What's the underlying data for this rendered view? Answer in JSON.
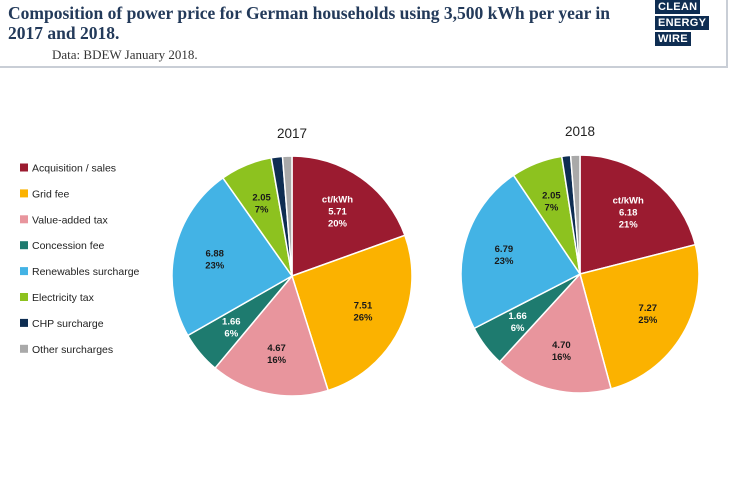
{
  "header": {
    "title": "Composition of power price for German households using 3,500 kWh per year in 2017 and 2018.",
    "subtitle": "Data: BDEW January 2018."
  },
  "logo": {
    "lines": [
      "CLEAN",
      "ENERGY",
      "WIRE"
    ]
  },
  "chart_data": {
    "type": "pie",
    "unit_label": "ct/kWh",
    "legend": [
      {
        "name": "Acquisition / sales",
        "color": "#9b1b30"
      },
      {
        "name": "Grid fee",
        "color": "#fbb200"
      },
      {
        "name": "Value-added tax",
        "color": "#e8959d"
      },
      {
        "name": "Concession fee",
        "color": "#1e7b6f"
      },
      {
        "name": "Renewables surcharge",
        "color": "#43b3e5"
      },
      {
        "name": "Electricity tax",
        "color": "#8dc21f"
      },
      {
        "name": "CHP surcharge",
        "color": "#0e2d52"
      },
      {
        "name": "Other surcharges",
        "color": "#a9a9a9"
      }
    ],
    "pies": [
      {
        "title": "2017",
        "values": [
          5.71,
          7.51,
          4.67,
          1.66,
          6.88,
          2.05,
          0.44,
          0.37
        ],
        "value_labels": [
          "5.71",
          "7.51",
          "4.67",
          "1.66",
          "6.88",
          "2.05",
          "",
          ""
        ],
        "percent_labels": [
          "20%",
          "26%",
          "16%",
          "6%",
          "23%",
          "7%",
          "",
          ""
        ]
      },
      {
        "title": "2018",
        "values": [
          6.18,
          7.27,
          4.7,
          1.66,
          6.79,
          2.05,
          0.35,
          0.37
        ],
        "value_labels": [
          "6.18",
          "7.27",
          "4.70",
          "1.66",
          "6.79",
          "2.05",
          "",
          ""
        ],
        "percent_labels": [
          "21%",
          "25%",
          "16%",
          "6%",
          "23%",
          "7%",
          "",
          ""
        ]
      }
    ]
  }
}
